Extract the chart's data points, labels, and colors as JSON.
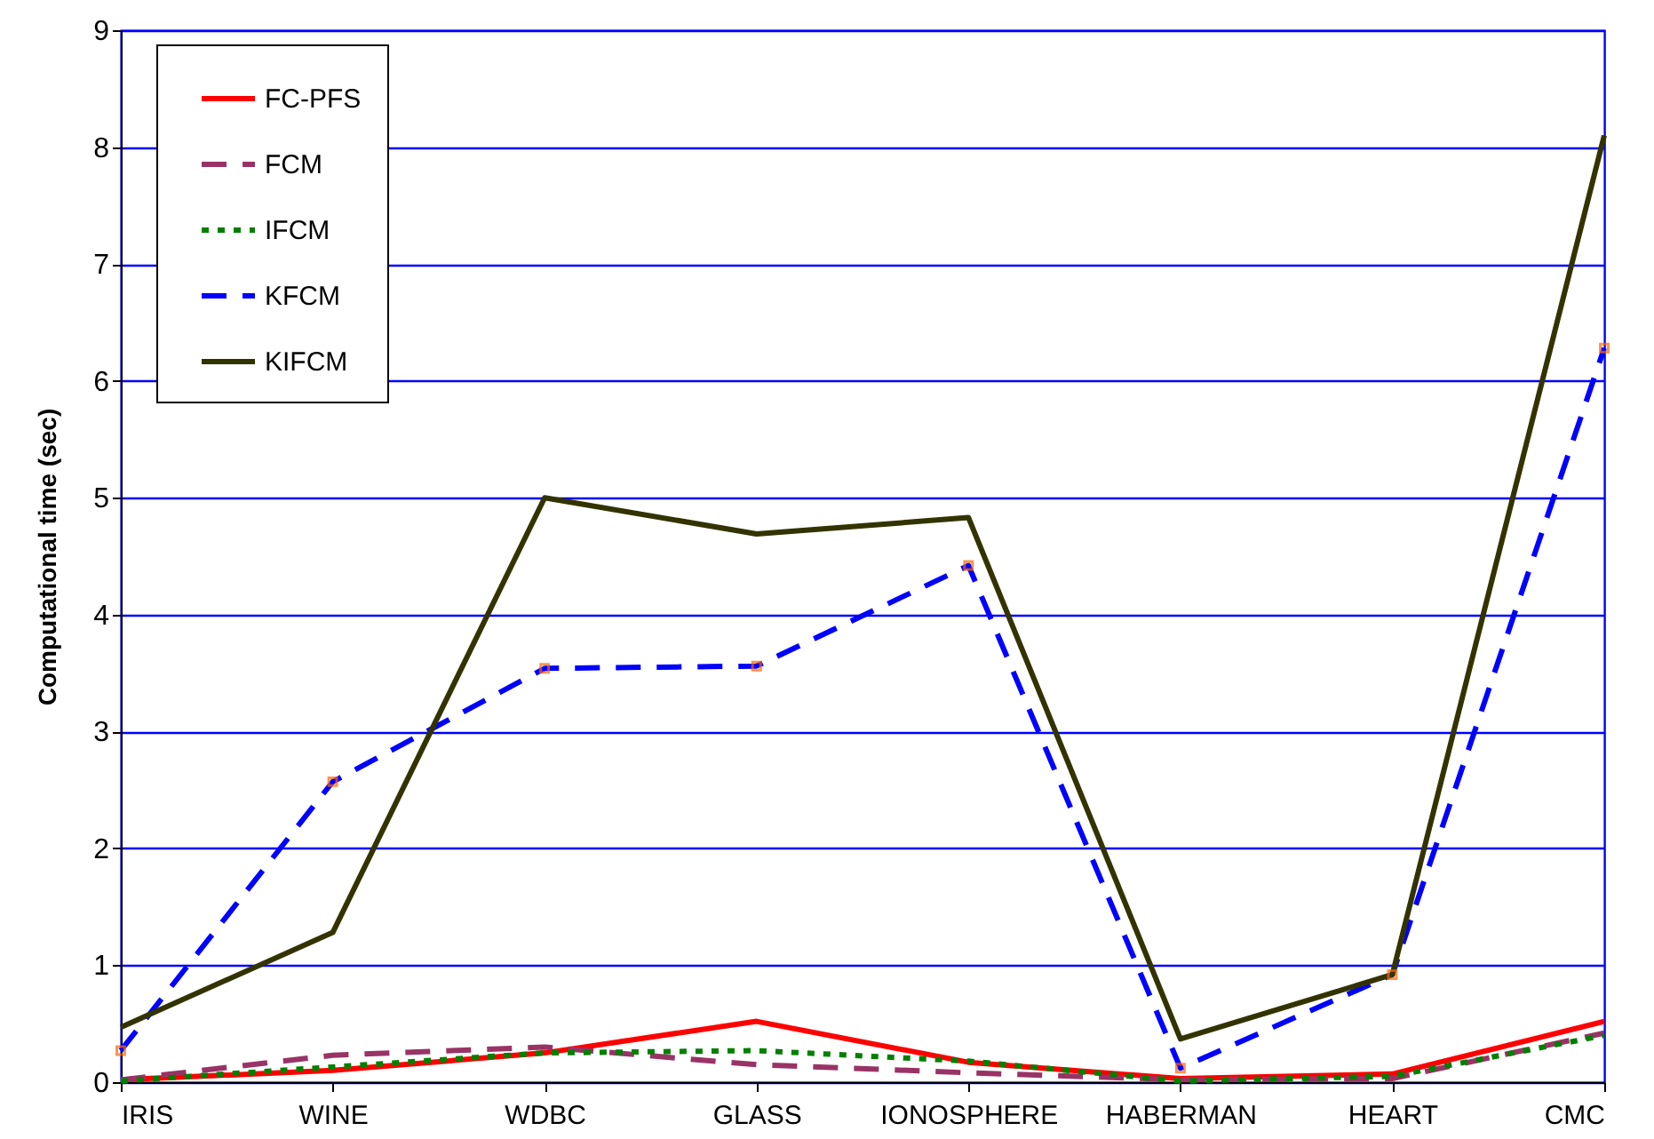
{
  "chart_data": {
    "type": "line",
    "ylabel": "Computational time (sec)",
    "categories": [
      "IRIS",
      "WINE",
      "WDBC",
      "GLASS",
      "IONOSPHERE",
      "HABERMAN",
      "HEART",
      "CMC"
    ],
    "series": [
      {
        "name": "FC-PFS",
        "color": "#ff0000",
        "line_style": "solid",
        "values": [
          0.02,
          0.1,
          0.25,
          0.52,
          0.17,
          0.03,
          0.07,
          0.52
        ]
      },
      {
        "name": "FCM",
        "color": "#993366",
        "line_style": "dashed",
        "values": [
          0.02,
          0.23,
          0.3,
          0.15,
          0.08,
          0.02,
          0.03,
          0.42
        ]
      },
      {
        "name": "IFCM",
        "color": "#008000",
        "line_style": "dotted",
        "values": [
          0.01,
          0.13,
          0.25,
          0.27,
          0.18,
          0.01,
          0.05,
          0.4
        ]
      },
      {
        "name": "KFCM",
        "color": "#0000ff",
        "line_style": "dashed",
        "marker": "square",
        "values": [
          0.27,
          2.57,
          3.54,
          3.56,
          4.42,
          0.12,
          0.92,
          6.28
        ]
      },
      {
        "name": "KIFCM",
        "color": "#333300",
        "line_style": "solid",
        "values": [
          0.47,
          1.28,
          5.0,
          4.69,
          4.83,
          0.37,
          0.92,
          8.1
        ]
      }
    ],
    "ylim": [
      0,
      9
    ],
    "yticks": [
      0,
      1,
      2,
      3,
      4,
      5,
      6,
      7,
      8,
      9
    ],
    "grid": "y",
    "legend": "top left"
  }
}
